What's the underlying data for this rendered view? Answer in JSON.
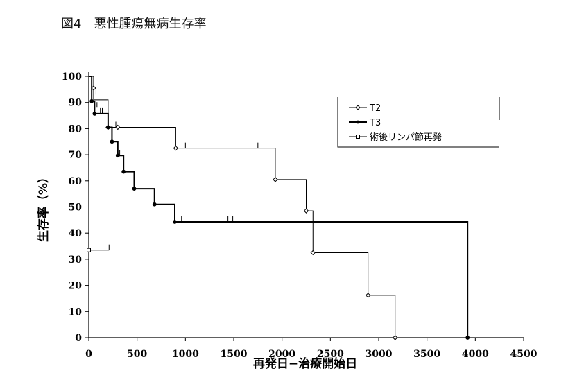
{
  "title": "図4　悪性腫瘍無病生存率",
  "chart_data": {
    "type": "line",
    "title": "図4　悪性腫瘍無病生存率",
    "xlabel": "再発日−治療開始日",
    "ylabel": "生存率（%）",
    "xlim": [
      0,
      4500
    ],
    "ylim": [
      0,
      100
    ],
    "xticks": [
      0,
      500,
      1000,
      1500,
      2000,
      2500,
      3000,
      3500,
      4000,
      4500
    ],
    "yticks": [
      0,
      10,
      20,
      30,
      40,
      50,
      60,
      70,
      80,
      90,
      100
    ],
    "legend_position": "top-right",
    "series": [
      {
        "name": "T2",
        "color": "#000000",
        "step_points": [
          [
            0,
            100
          ],
          [
            50,
            91
          ],
          [
            200,
            80.5
          ],
          [
            300,
            80.5
          ],
          [
            900,
            72.5
          ],
          [
            1930,
            60.5
          ],
          [
            2250,
            48.5
          ],
          [
            2320,
            32.5
          ],
          [
            2890,
            16.2
          ],
          [
            3170,
            0
          ]
        ],
        "event_markers": [
          [
            50,
            95.5
          ],
          [
            200,
            80.5
          ],
          [
            300,
            80.5
          ],
          [
            900,
            72.5
          ],
          [
            1930,
            60.5
          ],
          [
            2250,
            48.5
          ],
          [
            2320,
            32.5
          ],
          [
            2890,
            16.2
          ],
          [
            3170,
            0
          ]
        ],
        "censor_marks": [
          [
            75,
            93
          ],
          [
            85,
            88
          ],
          [
            280,
            80.5
          ],
          [
            1000,
            72.5
          ],
          [
            1750,
            72.5
          ]
        ]
      },
      {
        "name": "T3",
        "color": "#000000",
        "step_points": [
          [
            0,
            100
          ],
          [
            30,
            90.5
          ],
          [
            60,
            85.7
          ],
          [
            200,
            80.5
          ],
          [
            240,
            75
          ],
          [
            300,
            69.7
          ],
          [
            360,
            63.5
          ],
          [
            470,
            57
          ],
          [
            680,
            51
          ],
          [
            890,
            44.3
          ],
          [
            3920,
            44.3
          ],
          [
            3920,
            0
          ]
        ],
        "event_markers": [
          [
            30,
            90.5
          ],
          [
            60,
            85.7
          ],
          [
            200,
            80.5
          ],
          [
            240,
            75
          ],
          [
            300,
            69.7
          ],
          [
            360,
            63.5
          ],
          [
            470,
            57
          ],
          [
            680,
            51
          ],
          [
            890,
            44.3
          ],
          [
            3920,
            0
          ]
        ],
        "censor_marks": [
          [
            120,
            85.7
          ],
          [
            140,
            85.7
          ],
          [
            320,
            69.7
          ],
          [
            960,
            44.3
          ],
          [
            1440,
            44.3
          ],
          [
            1490,
            44.3
          ]
        ]
      },
      {
        "name": "術後リンパ節再発",
        "color": "#000000",
        "step_points": [
          [
            0,
            33.5
          ],
          [
            210,
            33.5
          ]
        ],
        "event_markers": [
          [
            0,
            33.5
          ]
        ],
        "censor_marks": [
          [
            210,
            33.5
          ]
        ]
      }
    ]
  }
}
